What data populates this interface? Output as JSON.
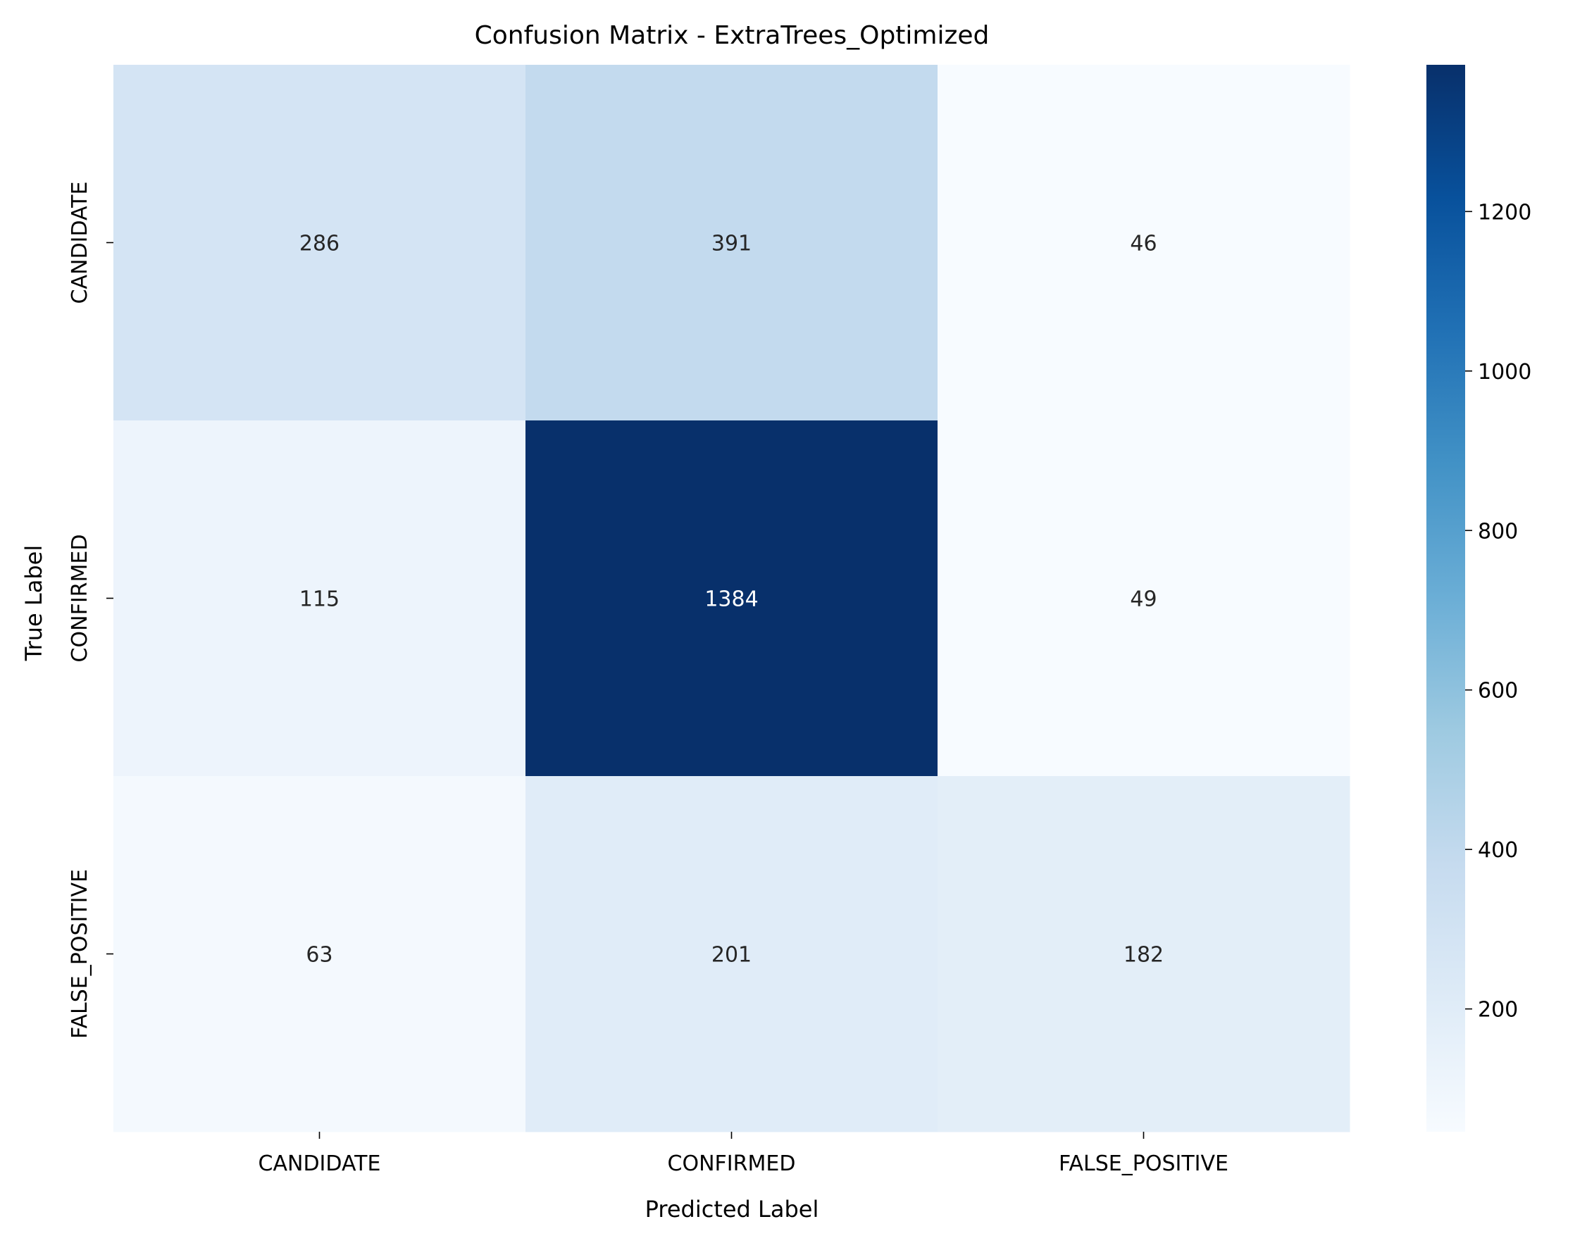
{
  "chart_data": {
    "type": "heatmap",
    "title": "Confusion Matrix - ExtraTrees_Optimized",
    "xlabel": "Predicted Label",
    "ylabel": "True Label",
    "x_categories": [
      "CANDIDATE",
      "CONFIRMED",
      "FALSE_POSITIVE"
    ],
    "y_categories": [
      "CANDIDATE",
      "CONFIRMED",
      "FALSE_POSITIVE"
    ],
    "values": [
      [
        286,
        391,
        46
      ],
      [
        115,
        1384,
        49
      ],
      [
        63,
        201,
        182
      ]
    ],
    "colormap": "Blues",
    "colormap_stops": [
      "#f7fbff",
      "#deebf7",
      "#c6dbef",
      "#9ecae1",
      "#6baed6",
      "#4292c6",
      "#2171b5",
      "#08519c",
      "#08306b"
    ],
    "color_range": [
      46,
      1384
    ],
    "colorbar_ticks": [
      200,
      400,
      600,
      800,
      1000,
      1200
    ],
    "annotation_colors": {
      "dark_text": "#262626",
      "light_text": "#ffffff"
    }
  }
}
